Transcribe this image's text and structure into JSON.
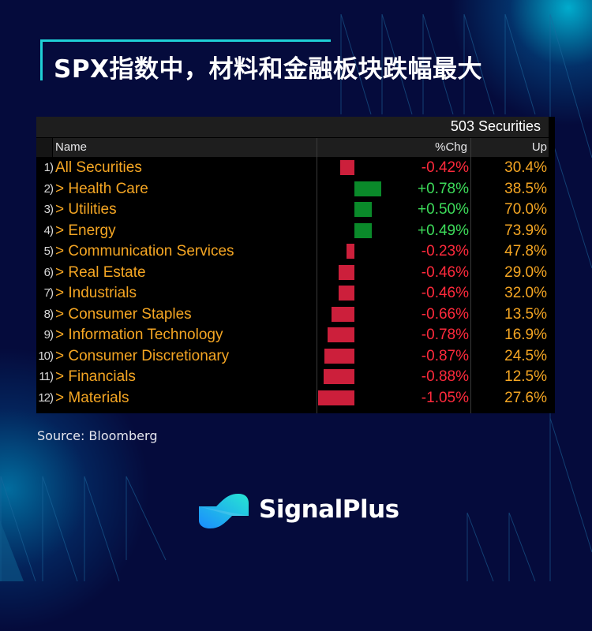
{
  "title": "SPX指数中，材料和金融板块跌幅最大",
  "table": {
    "count_label": "503 Securities",
    "columns": {
      "name": "Name",
      "chg": "%Chg",
      "up": "Up"
    },
    "rows": [
      {
        "idx": "1)",
        "name": "All Securities",
        "chg": "-0.42%",
        "up": "30.4%"
      },
      {
        "idx": "2)",
        "name": "> Health Care",
        "chg": "+0.78%",
        "up": "38.5%"
      },
      {
        "idx": "3)",
        "name": "> Utilities",
        "chg": "+0.50%",
        "up": "70.0%"
      },
      {
        "idx": "4)",
        "name": "> Energy",
        "chg": "+0.49%",
        "up": "73.9%"
      },
      {
        "idx": "5)",
        "name": "> Communication Services",
        "chg": "-0.23%",
        "up": "47.8%"
      },
      {
        "idx": "6)",
        "name": "> Real Estate",
        "chg": "-0.46%",
        "up": "29.0%"
      },
      {
        "idx": "7)",
        "name": "> Industrials",
        "chg": "-0.46%",
        "up": "32.0%"
      },
      {
        "idx": "8)",
        "name": "> Consumer Staples",
        "chg": "-0.66%",
        "up": "13.5%"
      },
      {
        "idx": "9)",
        "name": "> Information Technology",
        "chg": "-0.78%",
        "up": "16.9%"
      },
      {
        "idx": "10)",
        "name": "> Consumer Discretionary",
        "chg": "-0.87%",
        "up": "24.5%"
      },
      {
        "idx": "11)",
        "name": "> Financials",
        "chg": "-0.88%",
        "up": "12.5%"
      },
      {
        "idx": "12)",
        "name": "> Materials",
        "chg": "-1.05%",
        "up": "27.6%"
      }
    ]
  },
  "source": "Source: Bloomberg",
  "brand": "SignalPlus",
  "colors": {
    "background": "#050b3c",
    "accent": "#1fd0d6",
    "negative": "#cc1f3b",
    "positive": "#0a8a2a",
    "neg_text": "#ff2a3c",
    "pos_text": "#3ddc5a",
    "label_text": "#f5a623"
  },
  "chart_data": {
    "type": "bar",
    "orientation": "horizontal",
    "title": "SPX指数中，材料和金融板块跌幅最大",
    "subtitle": "503 Securities",
    "categories": [
      "All Securities",
      "Health Care",
      "Utilities",
      "Energy",
      "Communication Services",
      "Real Estate",
      "Industrials",
      "Consumer Staples",
      "Information Technology",
      "Consumer Discretionary",
      "Financials",
      "Materials"
    ],
    "series": [
      {
        "name": "%Chg",
        "values": [
          -0.42,
          0.78,
          0.5,
          0.49,
          -0.23,
          -0.46,
          -0.46,
          -0.66,
          -0.78,
          -0.87,
          -0.88,
          -1.05
        ]
      },
      {
        "name": "Up",
        "values": [
          30.4,
          38.5,
          70.0,
          73.9,
          47.8,
          29.0,
          32.0,
          13.5,
          16.9,
          24.5,
          12.5,
          27.6
        ]
      }
    ],
    "xlabel": "%Chg",
    "ylabel": "Name",
    "annotations": [
      "Source: Bloomberg"
    ]
  }
}
